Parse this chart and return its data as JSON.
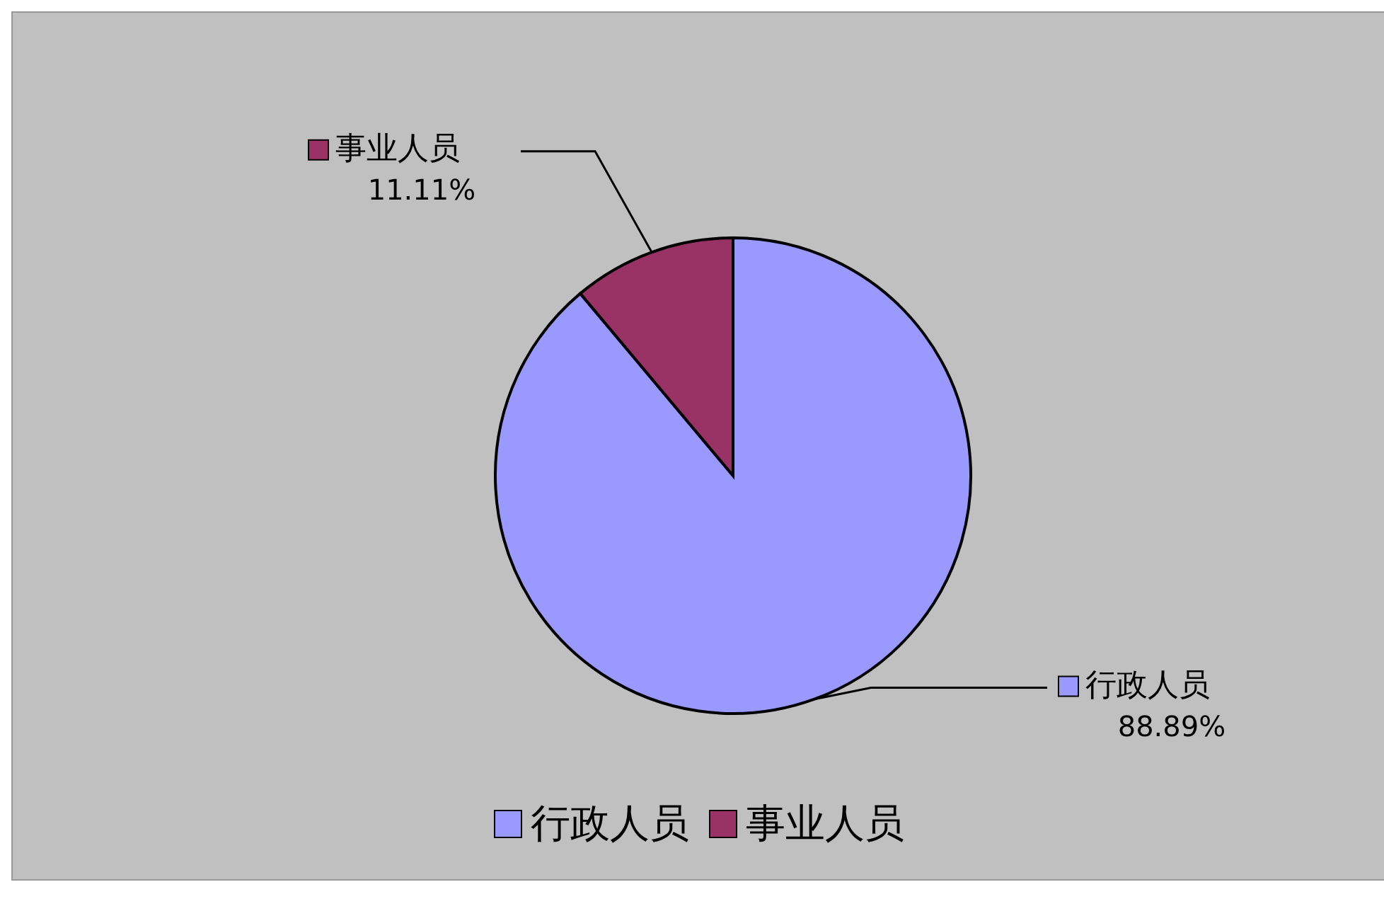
{
  "chart_data": {
    "type": "pie",
    "categories": [
      "行政人员",
      "事业人员"
    ],
    "values": [
      88.89,
      11.11
    ],
    "colors": [
      "#9999ff",
      "#993366"
    ],
    "value_labels": [
      "88.89%",
      "11.11%"
    ],
    "legend": "bottom"
  }
}
